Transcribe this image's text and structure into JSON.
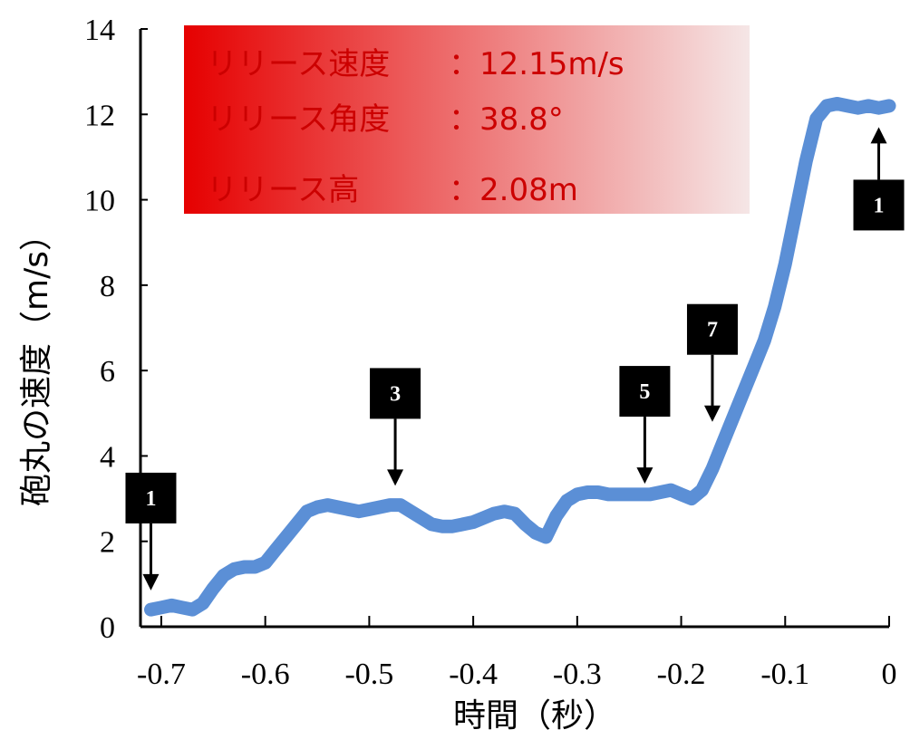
{
  "chart_data": {
    "type": "line",
    "xlabel": "時間（秒）",
    "ylabel": "砲丸の速度（m/s）",
    "xlim": [
      -0.72,
      0.0
    ],
    "ylim": [
      0,
      14
    ],
    "x_ticks": [
      -0.7,
      -0.6,
      -0.5,
      -0.4,
      -0.3,
      -0.2,
      -0.1,
      0
    ],
    "x_tick_labels": [
      "-0.7",
      "-0.6",
      "-0.5",
      "-0.4",
      "-0.3",
      "-0.2",
      "-0.1",
      "0"
    ],
    "y_ticks": [
      0,
      2,
      4,
      6,
      8,
      10,
      12,
      14
    ],
    "y_tick_labels": [
      "0",
      "2",
      "4",
      "6",
      "8",
      "10",
      "12",
      "14"
    ],
    "grid": false,
    "series": [
      {
        "color": "#5b8fd6",
        "x": [
          -0.71,
          -0.7,
          -0.69,
          -0.68,
          -0.67,
          -0.66,
          -0.65,
          -0.64,
          -0.63,
          -0.62,
          -0.61,
          -0.6,
          -0.59,
          -0.58,
          -0.57,
          -0.56,
          -0.55,
          -0.54,
          -0.53,
          -0.52,
          -0.51,
          -0.5,
          -0.49,
          -0.48,
          -0.47,
          -0.46,
          -0.45,
          -0.44,
          -0.43,
          -0.42,
          -0.41,
          -0.4,
          -0.39,
          -0.38,
          -0.37,
          -0.36,
          -0.35,
          -0.34,
          -0.33,
          -0.32,
          -0.31,
          -0.3,
          -0.29,
          -0.28,
          -0.27,
          -0.26,
          -0.25,
          -0.24,
          -0.23,
          -0.22,
          -0.21,
          -0.2,
          -0.19,
          -0.18,
          -0.17,
          -0.16,
          -0.15,
          -0.14,
          -0.13,
          -0.12,
          -0.11,
          -0.1,
          -0.09,
          -0.08,
          -0.07,
          -0.06,
          -0.05,
          -0.04,
          -0.03,
          -0.02,
          -0.01,
          0.0
        ],
        "y": [
          0.4,
          0.45,
          0.5,
          0.45,
          0.4,
          0.55,
          0.9,
          1.2,
          1.35,
          1.4,
          1.4,
          1.5,
          1.8,
          2.1,
          2.4,
          2.7,
          2.8,
          2.85,
          2.8,
          2.75,
          2.7,
          2.75,
          2.8,
          2.85,
          2.85,
          2.7,
          2.55,
          2.4,
          2.35,
          2.35,
          2.4,
          2.45,
          2.55,
          2.65,
          2.7,
          2.65,
          2.4,
          2.2,
          2.1,
          2.6,
          2.95,
          3.1,
          3.15,
          3.15,
          3.1,
          3.1,
          3.1,
          3.1,
          3.1,
          3.15,
          3.2,
          3.1,
          3.0,
          3.2,
          3.7,
          4.3,
          4.9,
          5.5,
          6.1,
          6.7,
          7.5,
          8.5,
          9.7,
          10.9,
          11.9,
          12.2,
          12.25,
          12.2,
          12.15,
          12.2,
          12.15,
          12.2
        ]
      }
    ],
    "info_box": {
      "lines": [
        {
          "label": "リリース速度",
          "value": "：12.15m/s"
        },
        {
          "label": "リリース角度",
          "value": "：38.8°"
        },
        {
          "label": "リリース高",
          "value": "：2.08m"
        }
      ],
      "gradient_start": "#e60000",
      "gradient_end": "#f5e6e6"
    },
    "markers": [
      {
        "label": "1",
        "x": -0.71,
        "arrow": "down",
        "arrow_tip_y": 0.85
      },
      {
        "label": "3",
        "x": -0.475,
        "arrow": "down",
        "arrow_tip_y": 3.3
      },
      {
        "label": "5",
        "x": -0.235,
        "arrow": "down",
        "arrow_tip_y": 3.35
      },
      {
        "label": "7",
        "x": -0.17,
        "arrow": "down",
        "arrow_tip_y": 4.8
      },
      {
        "label": "1",
        "x": -0.01,
        "arrow": "up",
        "arrow_tip_y": 11.7
      }
    ],
    "colors": {
      "axis": "#000000",
      "line": "#5b8fd6",
      "marker_box": "#000000"
    }
  }
}
